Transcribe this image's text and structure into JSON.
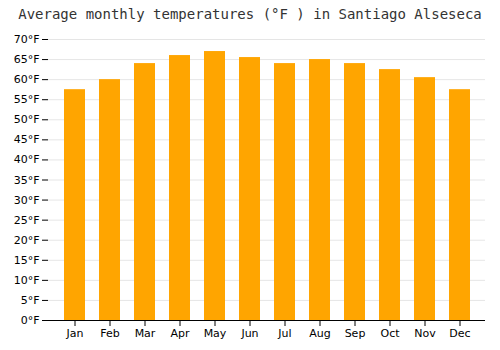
{
  "chart_data": {
    "type": "bar",
    "title": "Average monthly temperatures (°F ) in Santiago Alseseca",
    "categories": [
      "Jan",
      "Feb",
      "Mar",
      "Apr",
      "May",
      "Jun",
      "Jul",
      "Aug",
      "Sep",
      "Oct",
      "Nov",
      "Dec"
    ],
    "values": [
      57.5,
      60.0,
      64.0,
      66.0,
      67.0,
      65.5,
      64.0,
      65.0,
      64.0,
      62.5,
      60.5,
      57.5
    ],
    "color": "#FFA500",
    "ylim": [
      0,
      70
    ],
    "yticks": [
      {
        "value": 0,
        "label": "0°F"
      },
      {
        "value": 5,
        "label": "5°F"
      },
      {
        "value": 10,
        "label": "10°F"
      },
      {
        "value": 15,
        "label": "15°F"
      },
      {
        "value": 20,
        "label": "20°F"
      },
      {
        "value": 25,
        "label": "25°F"
      },
      {
        "value": 30,
        "label": "30°F"
      },
      {
        "value": 35,
        "label": "35°F"
      },
      {
        "value": 40,
        "label": "40°F"
      },
      {
        "value": 45,
        "label": "45°F"
      },
      {
        "value": 50,
        "label": "50°F"
      },
      {
        "value": 55,
        "label": "55°F"
      },
      {
        "value": 60,
        "label": "60°F"
      },
      {
        "value": 65,
        "label": "65°F"
      },
      {
        "value": 70,
        "label": "70°F"
      }
    ],
    "grid": true
  }
}
